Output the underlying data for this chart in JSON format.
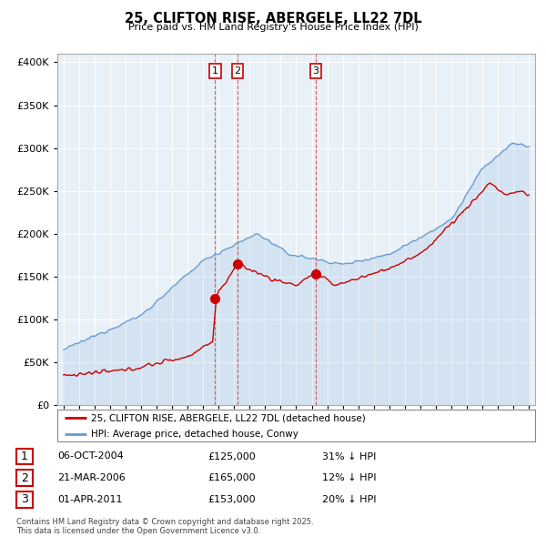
{
  "title": "25, CLIFTON RISE, ABERGELE, LL22 7DL",
  "subtitle": "Price paid vs. HM Land Registry's House Price Index (HPI)",
  "legend_red": "25, CLIFTON RISE, ABERGELE, LL22 7DL (detached house)",
  "legend_blue": "HPI: Average price, detached house, Conwy",
  "footer": "Contains HM Land Registry data © Crown copyright and database right 2025.\nThis data is licensed under the Open Government Licence v3.0.",
  "transactions": [
    {
      "num": 1,
      "date": "06-OCT-2004",
      "price": "£125,000",
      "hpi": "31% ↓ HPI",
      "year": 2004.77
    },
    {
      "num": 2,
      "date": "21-MAR-2006",
      "price": "£165,000",
      "hpi": "12% ↓ HPI",
      "year": 2006.22
    },
    {
      "num": 3,
      "date": "01-APR-2011",
      "price": "£153,000",
      "hpi": "20% ↓ HPI",
      "year": 2011.25
    }
  ],
  "transaction_prices": [
    125000,
    165000,
    153000
  ],
  "ylim": [
    0,
    410000
  ],
  "xlim_start": 1994.6,
  "xlim_end": 2025.4,
  "background_color": "#ffffff",
  "chart_bg_color": "#e8f0f8",
  "grid_color": "#ffffff",
  "red_color": "#cc0000",
  "blue_color": "#6699cc",
  "yticks": [
    0,
    50000,
    100000,
    150000,
    200000,
    250000,
    300000,
    350000,
    400000
  ]
}
